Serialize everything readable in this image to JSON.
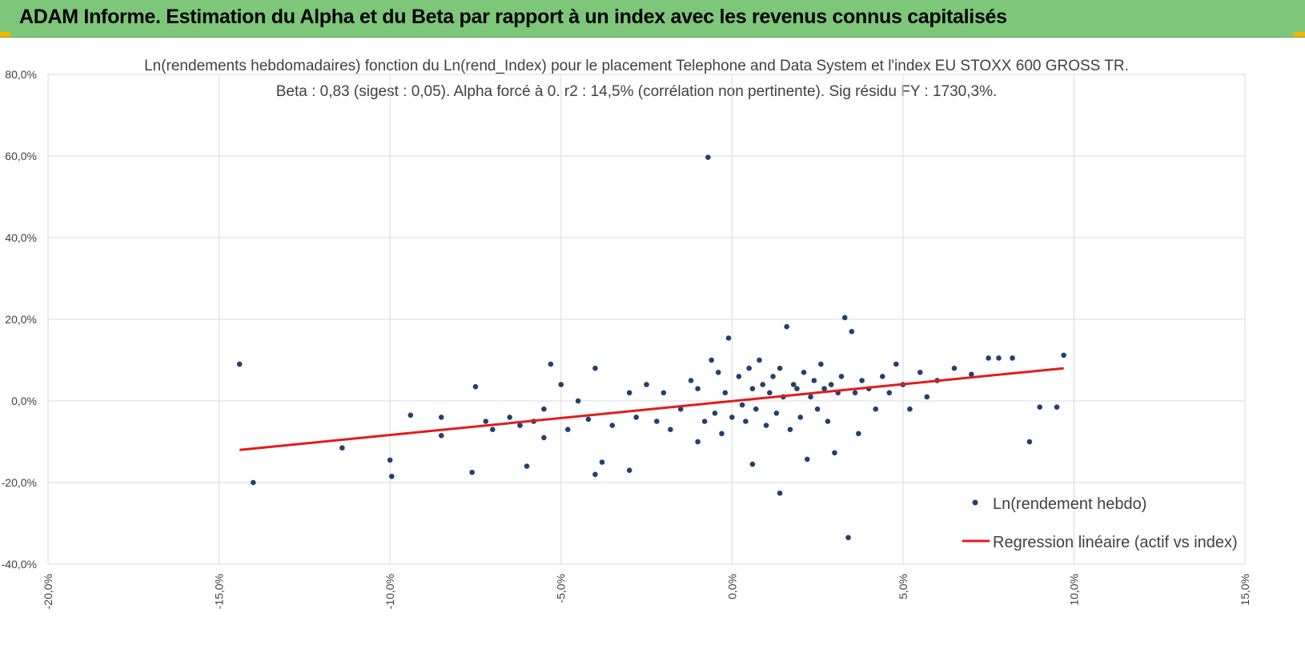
{
  "header": {
    "title": "ADAM Informe. Estimation du Alpha et du Beta par rapport à un index avec les revenus connus capitalisés"
  },
  "colors": {
    "header_bg": "#7dc67a",
    "corner": "#f2b400",
    "points": "#243f70",
    "regression": "#e31b1b",
    "grid": "#d9d9d9"
  },
  "chart_data": {
    "type": "scatter",
    "title": "Ln(rendements hebdomadaires) fonction du Ln(rend_Index) pour le placement Telephone and Data System et l'index EU STOXX 600 GROSS TR.",
    "subtitle": "Beta : 0,83 (sigest : 0,05). Alpha forcé à 0. r2 : 14,5% (corrélation non pertinente). Sig résidu FY : 1730,3%.",
    "xlim": [
      -0.2,
      0.15
    ],
    "ylim": [
      -0.4,
      0.8
    ],
    "x_ticks": [
      -0.2,
      -0.15,
      -0.1,
      -0.05,
      0.0,
      0.05,
      0.1,
      0.15
    ],
    "y_ticks": [
      -0.4,
      -0.2,
      0.0,
      0.2,
      0.4,
      0.6,
      0.8
    ],
    "x_tick_labels": [
      "-20,0%",
      "-15,0%",
      "-10,0%",
      "-5,0%",
      "0,0%",
      "5,0%",
      "10,0%",
      "15,0%"
    ],
    "y_tick_labels": [
      "-40,0%",
      "-20,0%",
      "0,0%",
      "20,0%",
      "40,0%",
      "60,0%",
      "80,0%"
    ],
    "grid": true,
    "legend_position": "bottom-right",
    "series": [
      {
        "name": "Ln(rendement hebdo)",
        "kind": "scatter",
        "points": [
          [
            -0.144,
            0.09
          ],
          [
            -0.14,
            -0.2
          ],
          [
            -0.114,
            -0.115
          ],
          [
            -0.1,
            -0.145
          ],
          [
            -0.0995,
            -0.185
          ],
          [
            -0.094,
            -0.035
          ],
          [
            -0.085,
            -0.04
          ],
          [
            -0.085,
            -0.085
          ],
          [
            -0.075,
            0.035
          ],
          [
            -0.076,
            -0.175
          ],
          [
            -0.072,
            -0.05
          ],
          [
            -0.07,
            -0.07
          ],
          [
            -0.065,
            -0.04
          ],
          [
            -0.062,
            -0.06
          ],
          [
            -0.06,
            -0.16
          ],
          [
            -0.058,
            -0.05
          ],
          [
            -0.055,
            -0.02
          ],
          [
            -0.055,
            -0.09
          ],
          [
            -0.053,
            0.09
          ],
          [
            -0.05,
            0.04
          ],
          [
            -0.048,
            -0.07
          ],
          [
            -0.045,
            0.0
          ],
          [
            -0.042,
            -0.045
          ],
          [
            -0.04,
            -0.18
          ],
          [
            -0.04,
            0.08
          ],
          [
            -0.038,
            -0.15
          ],
          [
            -0.035,
            -0.06
          ],
          [
            -0.03,
            -0.17
          ],
          [
            -0.03,
            0.02
          ],
          [
            -0.028,
            -0.04
          ],
          [
            -0.025,
            0.04
          ],
          [
            -0.022,
            -0.05
          ],
          [
            -0.02,
            0.02
          ],
          [
            -0.018,
            -0.07
          ],
          [
            -0.015,
            -0.02
          ],
          [
            -0.012,
            0.05
          ],
          [
            -0.01,
            -0.1
          ],
          [
            -0.01,
            0.03
          ],
          [
            -0.008,
            -0.05
          ],
          [
            -0.007,
            0.597
          ],
          [
            -0.006,
            0.1
          ],
          [
            -0.005,
            -0.03
          ],
          [
            -0.004,
            0.07
          ],
          [
            -0.003,
            -0.08
          ],
          [
            -0.002,
            0.02
          ],
          [
            -0.001,
            0.154
          ],
          [
            0.0,
            -0.04
          ],
          [
            0.002,
            0.06
          ],
          [
            0.003,
            -0.01
          ],
          [
            0.004,
            -0.05
          ],
          [
            0.005,
            0.08
          ],
          [
            0.006,
            -0.155
          ],
          [
            0.006,
            0.03
          ],
          [
            0.007,
            -0.02
          ],
          [
            0.008,
            0.1
          ],
          [
            0.009,
            0.04
          ],
          [
            0.01,
            -0.06
          ],
          [
            0.011,
            0.02
          ],
          [
            0.012,
            0.06
          ],
          [
            0.013,
            -0.03
          ],
          [
            0.014,
            0.08
          ],
          [
            0.014,
            -0.226
          ],
          [
            0.015,
            0.01
          ],
          [
            0.016,
            0.182
          ],
          [
            0.017,
            -0.07
          ],
          [
            0.018,
            0.04
          ],
          [
            0.019,
            0.03
          ],
          [
            0.02,
            -0.04
          ],
          [
            0.021,
            0.07
          ],
          [
            0.022,
            -0.143
          ],
          [
            0.023,
            0.01
          ],
          [
            0.024,
            0.05
          ],
          [
            0.025,
            -0.02
          ],
          [
            0.026,
            0.09
          ],
          [
            0.027,
            0.03
          ],
          [
            0.028,
            -0.05
          ],
          [
            0.029,
            0.04
          ],
          [
            0.03,
            -0.127
          ],
          [
            0.031,
            0.02
          ],
          [
            0.032,
            0.06
          ],
          [
            0.033,
            0.204
          ],
          [
            0.034,
            -0.335
          ],
          [
            0.035,
            0.17
          ],
          [
            0.036,
            0.02
          ],
          [
            0.037,
            -0.08
          ],
          [
            0.038,
            0.05
          ],
          [
            0.04,
            0.03
          ],
          [
            0.042,
            -0.02
          ],
          [
            0.044,
            0.06
          ],
          [
            0.046,
            0.02
          ],
          [
            0.048,
            0.09
          ],
          [
            0.05,
            0.04
          ],
          [
            0.052,
            -0.02
          ],
          [
            0.055,
            0.07
          ],
          [
            0.057,
            0.01
          ],
          [
            0.06,
            0.05
          ],
          [
            0.065,
            0.08
          ],
          [
            0.07,
            0.065
          ],
          [
            0.075,
            0.105
          ],
          [
            0.078,
            0.105
          ],
          [
            0.082,
            0.105
          ],
          [
            0.087,
            -0.1
          ],
          [
            0.09,
            -0.015
          ],
          [
            0.095,
            -0.015
          ],
          [
            0.097,
            0.112
          ]
        ]
      },
      {
        "name": "Regression linéaire (actif vs index)",
        "kind": "line",
        "x": [
          -0.144,
          0.097
        ],
        "y": [
          -0.12,
          0.08
        ]
      }
    ]
  }
}
